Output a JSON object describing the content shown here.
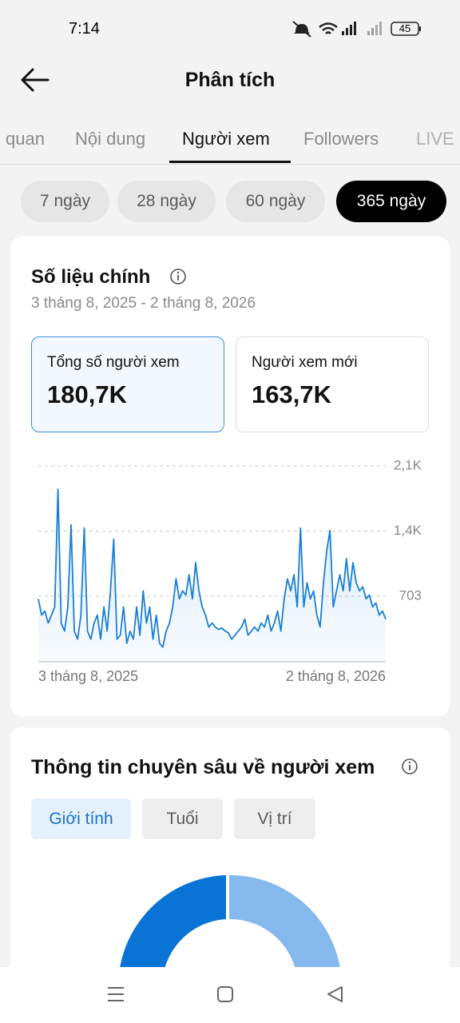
{
  "status_bar": {
    "time": "7:14",
    "battery": "45"
  },
  "header": {
    "title": "Phân tích"
  },
  "tabs": [
    "quan",
    "Nội dung",
    "Người xem",
    "Followers",
    "LIVE"
  ],
  "periods": [
    "7 ngày",
    "28 ngày",
    "60 ngày",
    "365 ngày"
  ],
  "metrics_card": {
    "title": "Số liệu chính",
    "date_range": "3 tháng 8, 2025 - 2 tháng 8, 2026",
    "metrics": [
      {
        "label": "Tổng số người xem",
        "value": "180,7K"
      },
      {
        "label": "Người xem mới",
        "value": "163,7K"
      }
    ]
  },
  "chart_data": {
    "type": "line",
    "color": "#1a7fd4",
    "categories": [
      "3 tháng 8, 2025",
      null,
      null,
      null,
      null,
      null,
      null,
      null,
      null,
      null,
      null,
      null,
      null,
      null,
      null,
      null,
      null,
      null,
      null,
      null,
      null,
      null,
      null,
      null,
      null,
      null,
      null,
      null,
      null,
      null,
      null,
      null,
      null,
      null,
      null,
      null,
      null,
      null,
      null,
      null,
      null,
      null,
      null,
      null,
      null,
      null,
      null,
      null,
      null,
      null,
      null,
      null,
      null,
      null,
      null,
      null,
      null,
      null,
      null,
      null,
      null,
      null,
      null,
      null,
      null,
      null,
      null,
      null,
      null,
      null,
      null,
      null,
      null,
      null,
      null,
      null,
      null,
      null,
      null,
      null,
      null,
      null,
      null,
      null,
      null,
      null,
      null,
      null,
      null,
      null,
      null,
      null,
      null,
      null,
      null,
      null,
      null,
      null,
      null,
      null,
      null,
      null,
      null,
      null,
      null,
      null,
      "2 tháng 8, 2026"
    ],
    "values": [
      674,
      501,
      544,
      415,
      501,
      588,
      1849,
      415,
      328,
      588,
      1469,
      328,
      242,
      501,
      1434,
      328,
      242,
      415,
      501,
      242,
      588,
      328,
      760,
      1313,
      242,
      285,
      588,
      199,
      328,
      242,
      588,
      285,
      760,
      415,
      588,
      242,
      501,
      199,
      156,
      328,
      415,
      588,
      890,
      674,
      760,
      717,
      933,
      674,
      1063,
      760,
      588,
      501,
      372,
      415,
      372,
      346,
      363,
      328,
      311,
      242,
      285,
      328,
      372,
      458,
      285,
      328,
      372,
      328,
      415,
      372,
      501,
      328,
      415,
      544,
      328,
      674,
      890,
      760,
      933,
      588,
      1434,
      588,
      847,
      674,
      760,
      501,
      372,
      847,
      1192,
      1408,
      588,
      760,
      933,
      760,
      1106,
      760,
      1063,
      847,
      760,
      804,
      674,
      717,
      588,
      631,
      501,
      544,
      458
    ],
    "ylim": [
      0,
      2100
    ],
    "yticks": [
      {
        "value": 2100,
        "label": "2,1K"
      },
      {
        "value": 1400,
        "label": "1,4K"
      },
      703
    ],
    "grid": true
  },
  "insights": {
    "title": "Thông tin chuyên sâu về người xem",
    "tabs": [
      "Giới tính",
      "Tuổi",
      "Vị trí"
    ]
  }
}
